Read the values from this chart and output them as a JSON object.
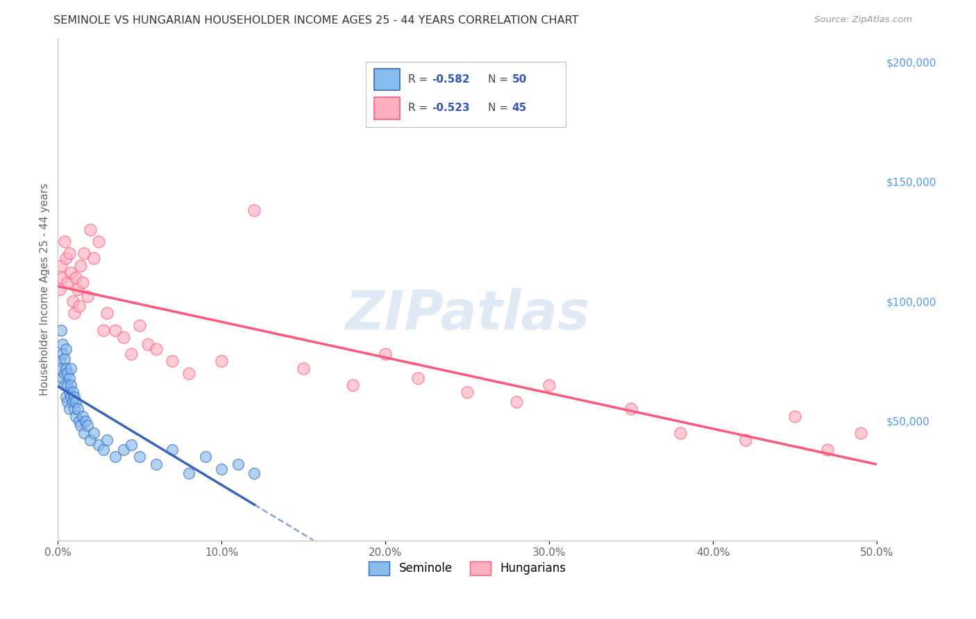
{
  "title": "SEMINOLE VS HUNGARIAN HOUSEHOLDER INCOME AGES 25 - 44 YEARS CORRELATION CHART",
  "source": "Source: ZipAtlas.com",
  "ylabel": "Householder Income Ages 25 - 44 years",
  "xlim": [
    0,
    0.5
  ],
  "ylim": [
    0,
    210000
  ],
  "xticks": [
    0.0,
    0.1,
    0.2,
    0.3,
    0.4,
    0.5
  ],
  "xtick_labels": [
    "0.0%",
    "10.0%",
    "20.0%",
    "30.0%",
    "40.0%",
    "50.0%"
  ],
  "yticks_right": [
    50000,
    100000,
    150000,
    200000
  ],
  "ytick_labels_right": [
    "$50,000",
    "$100,000",
    "$150,000",
    "$200,000"
  ],
  "seminole_R": -0.582,
  "seminole_N": 50,
  "hungarian_R": -0.523,
  "hungarian_N": 45,
  "seminole_color": "#88BBEE",
  "hungarian_color": "#FFB0C0",
  "seminole_line_color": "#3366BB",
  "hungarian_line_color": "#FF5577",
  "watermark": "ZIPatlas",
  "background_color": "#FFFFFF",
  "grid_color": "#CCCCCC",
  "legend_R_color": "#3355BB",
  "legend_N_color": "#3355BB",
  "seminole_scatter_x": [
    0.001,
    0.002,
    0.002,
    0.003,
    0.003,
    0.003,
    0.004,
    0.004,
    0.004,
    0.005,
    0.005,
    0.005,
    0.006,
    0.006,
    0.006,
    0.007,
    0.007,
    0.007,
    0.008,
    0.008,
    0.008,
    0.009,
    0.009,
    0.01,
    0.01,
    0.011,
    0.011,
    0.012,
    0.013,
    0.014,
    0.015,
    0.016,
    0.017,
    0.018,
    0.02,
    0.022,
    0.025,
    0.028,
    0.03,
    0.035,
    0.04,
    0.045,
    0.05,
    0.06,
    0.07,
    0.08,
    0.09,
    0.1,
    0.11,
    0.12
  ],
  "seminole_scatter_y": [
    75000,
    88000,
    72000,
    82000,
    68000,
    78000,
    70000,
    76000,
    65000,
    72000,
    60000,
    80000,
    65000,
    70000,
    58000,
    62000,
    68000,
    55000,
    60000,
    65000,
    72000,
    58000,
    62000,
    55000,
    60000,
    58000,
    52000,
    55000,
    50000,
    48000,
    52000,
    45000,
    50000,
    48000,
    42000,
    45000,
    40000,
    38000,
    42000,
    35000,
    38000,
    40000,
    35000,
    32000,
    38000,
    28000,
    35000,
    30000,
    32000,
    28000
  ],
  "hungarian_scatter_x": [
    0.001,
    0.002,
    0.003,
    0.004,
    0.005,
    0.006,
    0.007,
    0.008,
    0.009,
    0.01,
    0.011,
    0.012,
    0.013,
    0.014,
    0.015,
    0.016,
    0.018,
    0.02,
    0.022,
    0.025,
    0.028,
    0.03,
    0.035,
    0.04,
    0.045,
    0.05,
    0.055,
    0.06,
    0.07,
    0.08,
    0.1,
    0.12,
    0.15,
    0.18,
    0.2,
    0.22,
    0.25,
    0.28,
    0.3,
    0.35,
    0.38,
    0.42,
    0.45,
    0.47,
    0.49
  ],
  "hungarian_scatter_y": [
    105000,
    115000,
    110000,
    125000,
    118000,
    108000,
    120000,
    112000,
    100000,
    95000,
    110000,
    105000,
    98000,
    115000,
    108000,
    120000,
    102000,
    130000,
    118000,
    125000,
    88000,
    95000,
    88000,
    85000,
    78000,
    90000,
    82000,
    80000,
    75000,
    70000,
    75000,
    138000,
    72000,
    65000,
    78000,
    68000,
    62000,
    58000,
    65000,
    55000,
    45000,
    42000,
    52000,
    38000,
    45000
  ]
}
